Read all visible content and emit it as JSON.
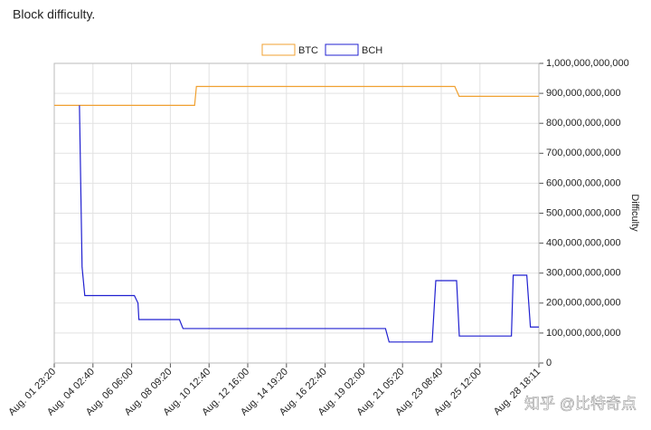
{
  "title": "Block difficulty.",
  "watermark": "知乎 @比特奇点",
  "chart_data": {
    "type": "line",
    "y_label": "Difficulty",
    "legend": "top",
    "grid": true,
    "xlim": [
      1.972,
      28.758
    ],
    "xticks": [
      {
        "value": 1.972,
        "label": "Aug. 01 23:20"
      },
      {
        "value": 4.111,
        "label": "Aug. 04 02:40"
      },
      {
        "value": 6.25,
        "label": "Aug. 06 06:00"
      },
      {
        "value": 8.389,
        "label": "Aug. 08 09:20"
      },
      {
        "value": 10.528,
        "label": "Aug. 10 12:40"
      },
      {
        "value": 12.667,
        "label": "Aug. 12 16:00"
      },
      {
        "value": 14.806,
        "label": "Aug. 14 19:20"
      },
      {
        "value": 16.944,
        "label": "Aug. 16 22:40"
      },
      {
        "value": 19.083,
        "label": "Aug. 19 02:00"
      },
      {
        "value": 21.222,
        "label": "Aug. 21 05:20"
      },
      {
        "value": 23.361,
        "label": "Aug. 23 08:40"
      },
      {
        "value": 25.5,
        "label": "Aug. 25 12:00"
      },
      {
        "value": 28.758,
        "label": "Aug. 28 18:11"
      }
    ],
    "ylim": [
      0,
      1000000000000
    ],
    "yticks": [
      0,
      {
        "value": 100000000000,
        "label": "100,000,000,000"
      },
      {
        "value": 200000000000,
        "label": "200,000,000,000"
      },
      {
        "value": 300000000000,
        "label": "300,000,000,000"
      },
      {
        "value": 400000000000,
        "label": "400,000,000,000"
      },
      {
        "value": 500000000000,
        "label": "500,000,000,000"
      },
      {
        "value": 600000000000,
        "label": "600,000,000,000"
      },
      {
        "value": 700000000000,
        "label": "700,000,000,000"
      },
      {
        "value": 800000000000,
        "label": "800,000,000,000"
      },
      {
        "value": 900000000000,
        "label": "900,000,000,000"
      },
      {
        "value": 1000000000000,
        "label": "1,000,000,000,000"
      }
    ],
    "series": [
      {
        "name": "BTC",
        "color": "#f0a030",
        "x": [
          1.972,
          9.73,
          9.83,
          24.11,
          24.35,
          28.758
        ],
        "values": [
          860000000000,
          860000000000,
          923000000000,
          923000000000,
          890000000000,
          890000000000
        ]
      },
      {
        "name": "BCH",
        "color": "#2020d0",
        "x": [
          3.365,
          3.51,
          3.66,
          6.4,
          6.6,
          6.65,
          8.89,
          9.09,
          20.28,
          20.48,
          22.86,
          23.06,
          24.21,
          24.36,
          27.24,
          27.34,
          28.09,
          28.29,
          28.758
        ],
        "values": [
          860000000000,
          320000000000,
          225000000000,
          225000000000,
          200000000000,
          145000000000,
          145000000000,
          115000000000,
          115000000000,
          70000000000,
          70000000000,
          275000000000,
          275000000000,
          90000000000,
          90000000000,
          293000000000,
          293000000000,
          120000000000,
          120000000000
        ]
      }
    ]
  }
}
